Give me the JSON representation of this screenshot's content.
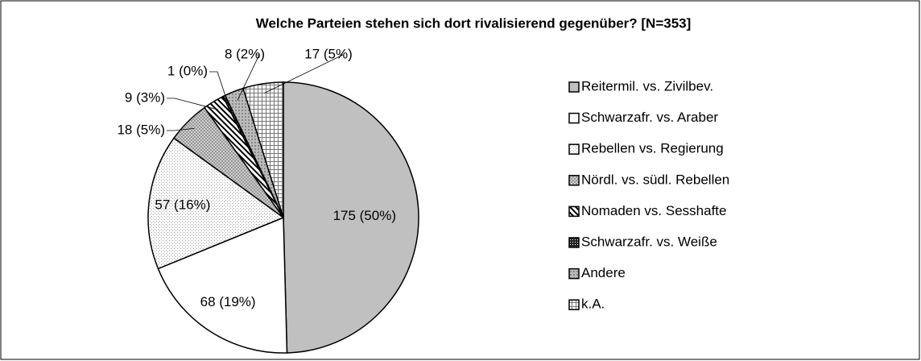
{
  "chart_data": {
    "type": "pie",
    "title": "Welche Parteien stehen sich dort rivalisierend gegenüber? [N=353]",
    "categories": [
      "Reitermil. vs. Zivilbev.",
      "Schwarzafr. vs. Araber",
      "Rebellen vs. Regierung",
      "Nördl. vs. südl. Rebellen",
      "Nomaden vs. Sesshafte",
      "Schwarzafr. vs. Weiße",
      "Andere",
      "k.A."
    ],
    "values": [
      175,
      68,
      57,
      18,
      9,
      1,
      8,
      17
    ],
    "value_labels": [
      "175 (50%)",
      "68 (19%)",
      "57 (16%)",
      "18 (5%)",
      "9 (3%)",
      "1 (0%)",
      "8 (2%)",
      "17 (5%)"
    ],
    "legend": "right"
  }
}
